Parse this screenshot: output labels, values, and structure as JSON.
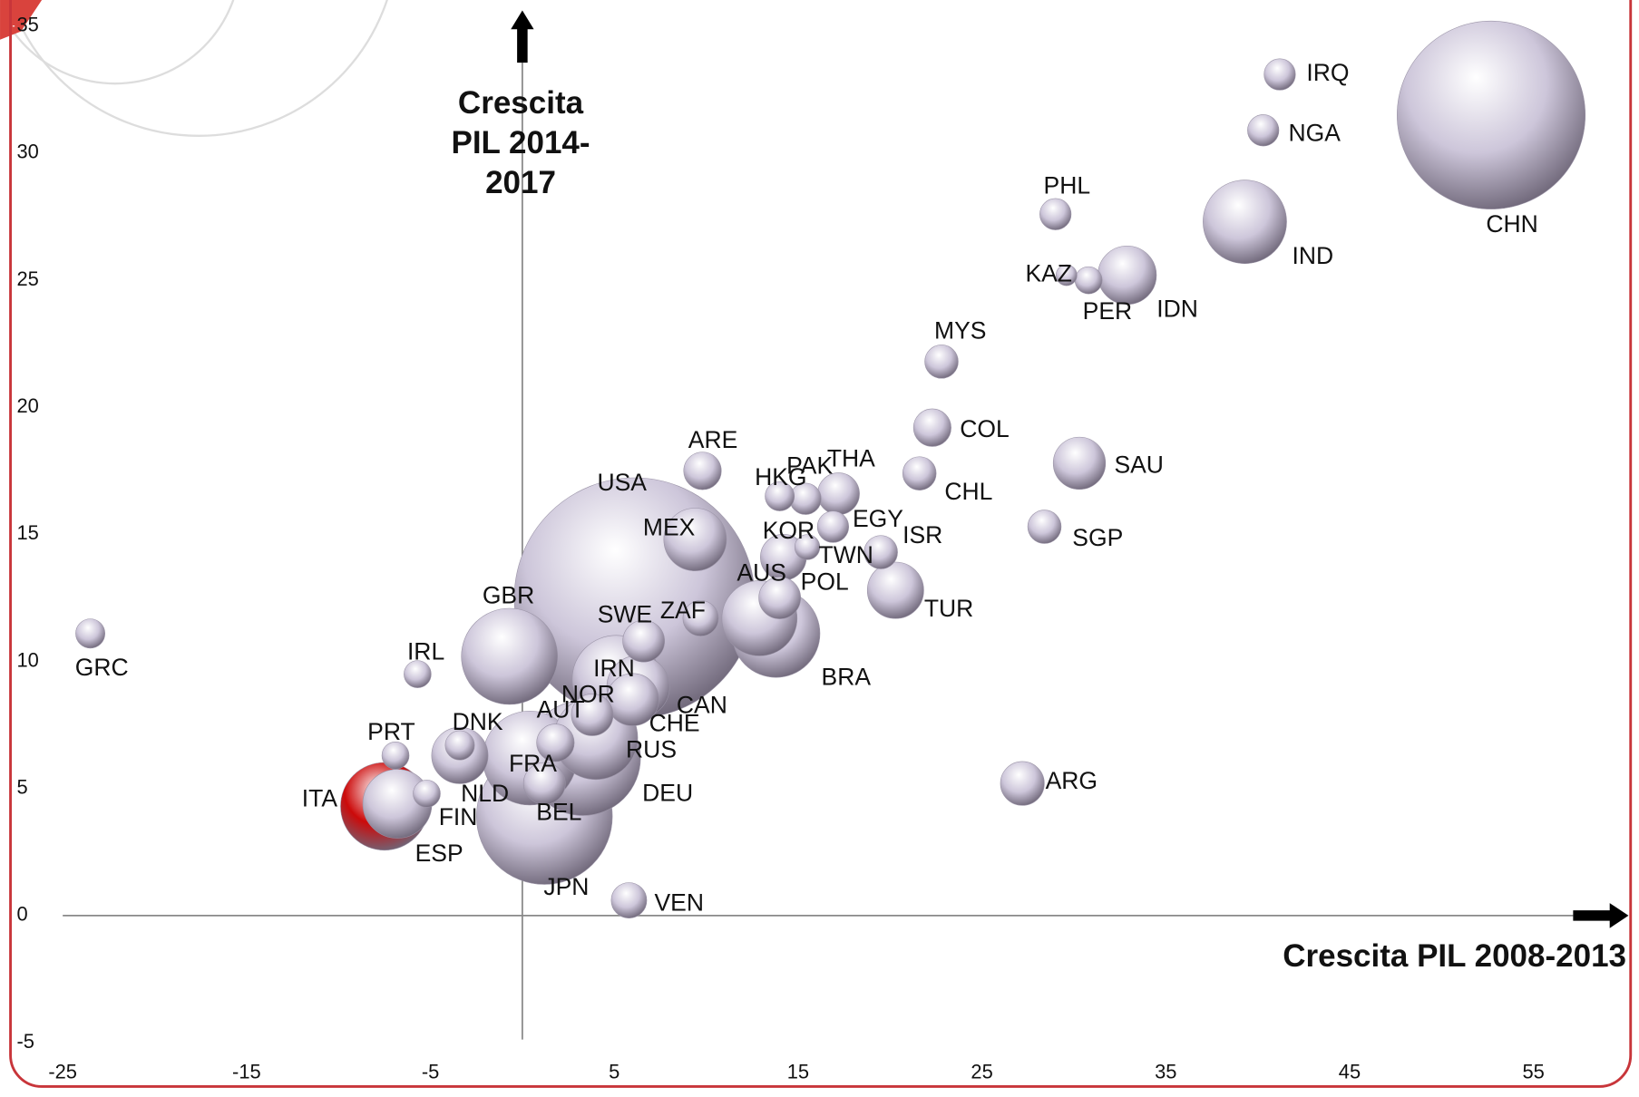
{
  "chart_data": {
    "type": "scatter",
    "x_axis_title": "Crescita PIL 2008-2013",
    "y_axis_title": "Crescita PIL 2014-2017",
    "labels": [
      "CHN",
      "IND",
      "USA",
      "JPN",
      "DEU",
      "GBR",
      "FRA",
      "BRA",
      "IRN",
      "RUS",
      "ITA",
      "AUS",
      "ESP",
      "CAN",
      "MEX",
      "IDN",
      "NLD",
      "TUR",
      "SAU",
      "CHE",
      "KOR",
      "ARG",
      "SWE",
      "NOR",
      "POL",
      "THA",
      "BEL",
      "AUT",
      "COL",
      "ARE",
      "ZAF",
      "VEN",
      "MYS",
      "CHL",
      "SGP",
      "ISR",
      "IRQ",
      "NGA",
      "PHL",
      "PAK",
      "EGY",
      "HKG",
      "DNK",
      "GRC",
      "PER",
      "FIN",
      "PRT",
      "IRL",
      "TWN",
      "KAZ"
    ],
    "x": [
      52.7,
      39.3,
      6.1,
      1.2,
      3.3,
      -0.7,
      0.4,
      13.8,
      5.1,
      4.0,
      -7.5,
      12.9,
      -6.8,
      6.3,
      9.4,
      32.9,
      -3.4,
      20.3,
      30.3,
      6.0,
      14.2,
      27.2,
      6.6,
      3.8,
      14.0,
      17.2,
      1.2,
      1.8,
      22.3,
      9.8,
      9.7,
      5.8,
      22.8,
      21.6,
      28.4,
      19.5,
      41.2,
      40.3,
      29.0,
      15.4,
      16.9,
      14.0,
      -3.4,
      -23.5,
      30.8,
      -5.2,
      -6.9,
      -5.7,
      15.5,
      29.6
    ],
    "y": [
      31.5,
      27.3,
      12.5,
      3.9,
      6.2,
      10.2,
      6.2,
      11.1,
      9.3,
      7.0,
      4.3,
      11.7,
      4.4,
      9.0,
      14.8,
      25.2,
      6.3,
      12.8,
      17.8,
      8.5,
      14.1,
      5.2,
      10.8,
      7.9,
      12.5,
      16.6,
      5.2,
      6.8,
      19.2,
      17.5,
      11.7,
      0.6,
      21.8,
      17.4,
      15.3,
      14.3,
      33.1,
      30.9,
      27.6,
      16.4,
      15.3,
      16.5,
      6.7,
      11.1,
      25.0,
      4.8,
      6.3,
      9.5,
      14.5,
      25.2
    ],
    "sizes": [
      90,
      40,
      115,
      65,
      55,
      46,
      45,
      42,
      42,
      40,
      42,
      36,
      33,
      30,
      30,
      28,
      27,
      27,
      25,
      25,
      22,
      21,
      20,
      20,
      20,
      20,
      20,
      18,
      18,
      18,
      17,
      17,
      16,
      16,
      16,
      16,
      15,
      15,
      15,
      15,
      15,
      14,
      14,
      14,
      13,
      13,
      13,
      13,
      12,
      10
    ],
    "color": "#cdc6da",
    "highlight": {
      "label_index": 10,
      "color": "#cc0a0a"
    },
    "xlim": [
      -25,
      60
    ],
    "ylim": [
      -5,
      35
    ],
    "xticks": [
      -25,
      -15,
      -5,
      5,
      15,
      25,
      35,
      45,
      55
    ],
    "yticks": [
      -5,
      0,
      5,
      10,
      15,
      20,
      25,
      30,
      35
    ]
  }
}
